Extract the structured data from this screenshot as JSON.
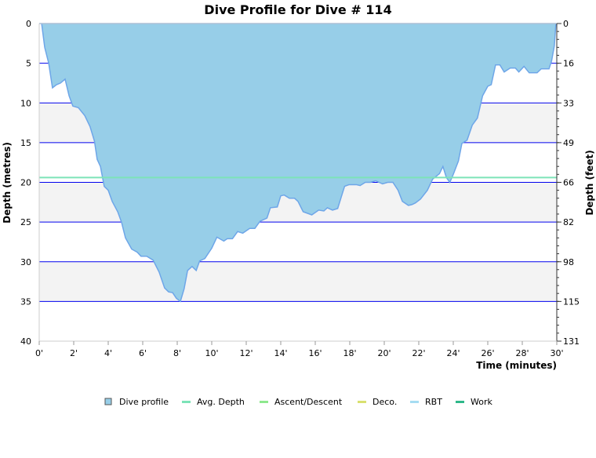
{
  "chart_data": {
    "type": "area",
    "title": "Dive Profile for Dive # 114",
    "xlabel": "Time (minutes)",
    "ylabel_left": "Depth (metres)",
    "ylabel_right": "Depth (feet)",
    "xlim": [
      0,
      30
    ],
    "ylim_left": [
      0,
      40
    ],
    "y_inverted": true,
    "x_ticks": [
      "0'",
      "2'",
      "4'",
      "6'",
      "8'",
      "10'",
      "12'",
      "14'",
      "16'",
      "18'",
      "20'",
      "22'",
      "24'",
      "26'",
      "28'",
      "30'"
    ],
    "y_ticks_left": [
      "0",
      "5",
      "10",
      "15",
      "20",
      "25",
      "30",
      "35",
      "40"
    ],
    "y_ticks_right": [
      "0",
      "16",
      "33",
      "49",
      "66",
      "82",
      "98",
      "115",
      "131"
    ],
    "grid": true,
    "legend_placement": "bottom",
    "avg_depth": 19.4,
    "colors": {
      "dive_profile_fill": "#97cee8",
      "dive_profile_line": "#6ea6e8",
      "avg_depth": "#7de3b8",
      "ascent_descent": "#8ee88e",
      "deco": "#d9e070",
      "rbt": "#a6dcf2",
      "work": "#2fb88a",
      "grid": "#0000ee",
      "band": "#f3f3f3"
    },
    "legend": [
      {
        "name": "Dive profile",
        "key": "dive_profile"
      },
      {
        "name": "Avg. Depth",
        "key": "avg_depth"
      },
      {
        "name": "Ascent/Descent",
        "key": "ascent_descent"
      },
      {
        "name": "Deco.",
        "key": "deco"
      },
      {
        "name": "RBT",
        "key": "rbt"
      },
      {
        "name": "Work",
        "key": "work"
      }
    ],
    "series": [
      {
        "name": "Dive profile",
        "x": [
          0,
          0.14,
          0.32,
          0.55,
          0.77,
          1.0,
          1.23,
          1.5,
          1.73,
          1.95,
          2.27,
          2.64,
          2.95,
          3.2,
          3.36,
          3.55,
          3.77,
          4.0,
          4.23,
          4.55,
          4.77,
          5.0,
          5.36,
          5.68,
          5.9,
          6.23,
          6.6,
          6.95,
          7.27,
          7.5,
          7.73,
          7.95,
          8.18,
          8.4,
          8.6,
          8.86,
          9.1,
          9.3,
          9.6,
          10.0,
          10.3,
          10.7,
          10.9,
          11.2,
          11.5,
          11.8,
          12.2,
          12.5,
          12.8,
          13.2,
          13.4,
          13.8,
          14.0,
          14.2,
          14.5,
          14.8,
          15.0,
          15.3,
          15.8,
          16.2,
          16.5,
          16.7,
          17.0,
          17.3,
          17.5,
          17.7,
          17.95,
          18.4,
          18.6,
          18.9,
          19.2,
          19.5,
          19.9,
          20.2,
          20.5,
          20.8,
          21.05,
          21.4,
          21.6,
          21.8,
          22.1,
          22.5,
          22.8,
          23.2,
          23.4,
          23.6,
          23.8,
          24.0,
          24.3,
          24.5,
          24.8,
          25.1,
          25.4,
          25.7,
          26.0,
          26.2,
          26.45,
          26.7,
          26.95,
          27.3,
          27.6,
          27.8,
          28.1,
          28.4,
          28.86,
          29.1,
          29.55,
          29.7,
          29.86,
          29.95
        ],
        "y": [
          0,
          0,
          3,
          5,
          8.1,
          7.7,
          7.5,
          7.0,
          9.1,
          10.4,
          10.6,
          11.6,
          13.0,
          14.8,
          17.1,
          18,
          20.5,
          21.0,
          22.4,
          23.7,
          25,
          27,
          28.4,
          28.8,
          29.3,
          29.3,
          29.8,
          31.3,
          33.3,
          33.8,
          33.9,
          34.6,
          35,
          33.4,
          31.1,
          30.6,
          31.1,
          29.9,
          29.6,
          28.3,
          26.9,
          27.4,
          27.1,
          27.1,
          26.2,
          26.4,
          25.8,
          25.8,
          24.9,
          24.5,
          23.2,
          23.1,
          21.7,
          21.6,
          22,
          22,
          22.4,
          23.7,
          24.1,
          23.5,
          23.6,
          23.2,
          23.5,
          23.3,
          21.9,
          20.5,
          20.3,
          20.3,
          20.4,
          20,
          20,
          19.8,
          20.2,
          20,
          20,
          21,
          22.4,
          22.9,
          22.8,
          22.6,
          22.1,
          21,
          19.6,
          18.9,
          18,
          19.4,
          20,
          19,
          17.3,
          15.1,
          14.7,
          12.8,
          11.9,
          9.1,
          7.9,
          7.7,
          5.2,
          5.2,
          6.1,
          5.6,
          5.6,
          6.1,
          5.4,
          6.2,
          6.2,
          5.7,
          5.7,
          4.7,
          2.8,
          0
        ]
      }
    ]
  }
}
